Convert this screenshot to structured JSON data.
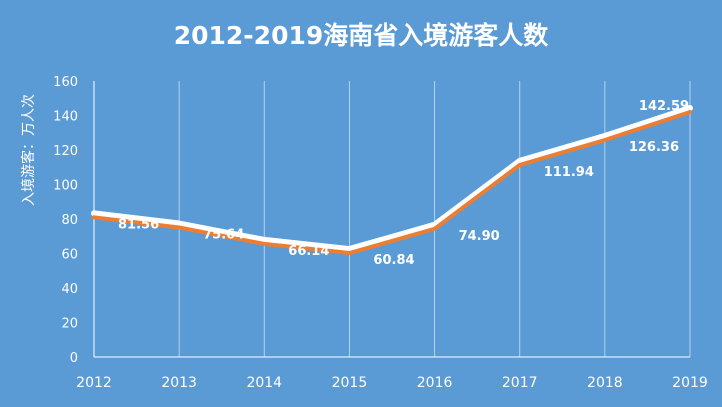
{
  "chart_data": {
    "type": "line",
    "title": "2012-2019海南省入境游客人数",
    "ylabel": "入境游客：万人次",
    "xlabel": "",
    "categories": [
      "2012",
      "2013",
      "2014",
      "2015",
      "2016",
      "2017",
      "2018",
      "2019"
    ],
    "series": [
      {
        "values": [
          81.56,
          75.64,
          66.14,
          60.84,
          74.9,
          111.94,
          126.36,
          142.59
        ],
        "data_labels": [
          "81.56",
          "75.64",
          "66.14",
          "60.84",
          "74.90",
          "111.94",
          "126.36",
          "142.59"
        ],
        "color": "#ed7d31",
        "shadow_color": "#ffffff"
      }
    ],
    "ylim": [
      0,
      160
    ],
    "yticks": [
      "0",
      "20",
      "40",
      "60",
      "80",
      "100",
      "120",
      "140",
      "160"
    ],
    "grid": "vertical",
    "legend": "none",
    "colors": {
      "background": "#5b9bd5",
      "text": "#ffffff",
      "axis": "#ffffff",
      "grid": "#ffffff"
    }
  }
}
